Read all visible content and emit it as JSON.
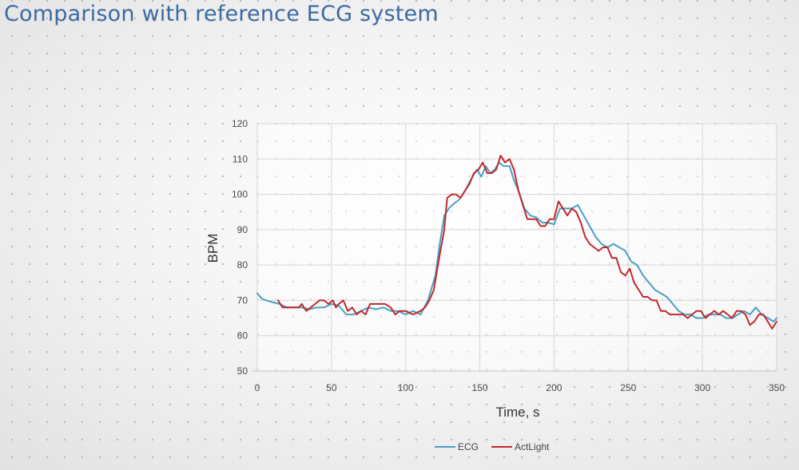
{
  "slide": {
    "title": "Comparison with reference ECG system"
  },
  "chart_data": {
    "type": "line",
    "xlabel": "Time, s",
    "ylabel": "BPM",
    "xlim": [
      0,
      350
    ],
    "ylim": [
      50,
      120
    ],
    "xticks": [
      0,
      50,
      100,
      150,
      200,
      250,
      300,
      350
    ],
    "yticks": [
      50,
      60,
      70,
      80,
      90,
      100,
      110,
      120
    ],
    "grid": true,
    "legend_position": "bottom-center",
    "series": [
      {
        "name": "ECG",
        "color": "#4a9fc4",
        "x": [
          0,
          3,
          6,
          10,
          15,
          20,
          25,
          30,
          35,
          40,
          45,
          50,
          55,
          60,
          65,
          70,
          75,
          80,
          85,
          90,
          95,
          100,
          105,
          110,
          115,
          120,
          123,
          126,
          130,
          133,
          136,
          140,
          145,
          148,
          151,
          154,
          157,
          160,
          163,
          166,
          170,
          173,
          176,
          180,
          184,
          188,
          192,
          196,
          200,
          204,
          208,
          212,
          216,
          220,
          224,
          228,
          232,
          236,
          240,
          244,
          248,
          252,
          256,
          260,
          264,
          268,
          272,
          276,
          280,
          284,
          288,
          292,
          296,
          300,
          304,
          308,
          312,
          316,
          320,
          324,
          328,
          332,
          336,
          340,
          344,
          348,
          350
        ],
        "y": [
          72,
          70.5,
          70,
          69.5,
          69,
          68,
          68,
          68,
          67.5,
          68,
          68,
          69,
          68.5,
          66,
          66,
          67,
          68,
          67.5,
          68,
          67,
          67,
          66,
          67,
          66,
          70,
          77,
          86,
          94,
          96.5,
          97.5,
          98.5,
          101,
          105,
          107,
          105,
          108,
          106,
          107,
          109,
          108,
          108,
          104,
          101,
          96,
          94,
          93.5,
          92,
          92,
          91.5,
          96,
          96,
          96,
          97,
          94,
          91,
          88,
          86,
          85,
          86,
          85,
          84,
          81,
          80,
          77,
          75,
          73,
          72,
          71,
          69,
          67,
          66,
          66,
          65,
          65,
          66,
          66,
          66,
          65,
          65,
          66,
          67,
          66,
          68,
          66,
          65,
          64,
          65
        ]
      },
      {
        "name": "ActLight",
        "color": "#c0282c",
        "x": [
          14,
          17,
          20,
          25,
          28,
          30,
          33,
          36,
          39,
          42,
          45,
          48,
          51,
          53,
          55,
          58,
          61,
          64,
          67,
          70,
          73,
          76,
          79,
          82,
          86,
          90,
          93,
          96,
          100,
          105,
          110,
          113,
          116,
          119,
          121,
          123,
          126,
          128,
          131,
          134,
          137,
          140,
          143,
          146,
          149,
          152,
          155,
          158,
          161,
          164,
          167,
          170,
          173,
          176,
          179,
          182,
          185,
          188,
          191,
          194,
          197,
          200,
          203,
          206,
          209,
          212,
          215,
          218,
          221,
          224,
          227,
          230,
          233,
          236,
          239,
          242,
          245,
          248,
          251,
          254,
          257,
          260,
          263,
          266,
          269,
          272,
          275,
          278,
          281,
          284,
          287,
          290,
          293,
          296,
          299,
          302,
          305,
          308,
          311,
          314,
          317,
          320,
          323,
          326,
          329,
          332,
          335,
          338,
          341,
          344,
          347,
          350
        ],
        "y": [
          70,
          68,
          68,
          68,
          68,
          69,
          67,
          68,
          69,
          70,
          70,
          69,
          70,
          68,
          69,
          70,
          67,
          68,
          66,
          67,
          66,
          69,
          69,
          69,
          69,
          68,
          66,
          67,
          67,
          66,
          67,
          68,
          70,
          73,
          78,
          83,
          90,
          99,
          100,
          100,
          99,
          101,
          103,
          106,
          107,
          109,
          106,
          106,
          107,
          111,
          109,
          110,
          107,
          101,
          97,
          93,
          93,
          93,
          91,
          91,
          93,
          93,
          98,
          96,
          94,
          96,
          95,
          92,
          88,
          86,
          85,
          84,
          85,
          85,
          82,
          82,
          78,
          77,
          79,
          75,
          73,
          71,
          71,
          70,
          70,
          67,
          67,
          66,
          66,
          66,
          66,
          65,
          66,
          67,
          67,
          65,
          66,
          67,
          66,
          67,
          66,
          65,
          67,
          67,
          66,
          63,
          64,
          66,
          66,
          64,
          62,
          64
        ]
      }
    ]
  }
}
